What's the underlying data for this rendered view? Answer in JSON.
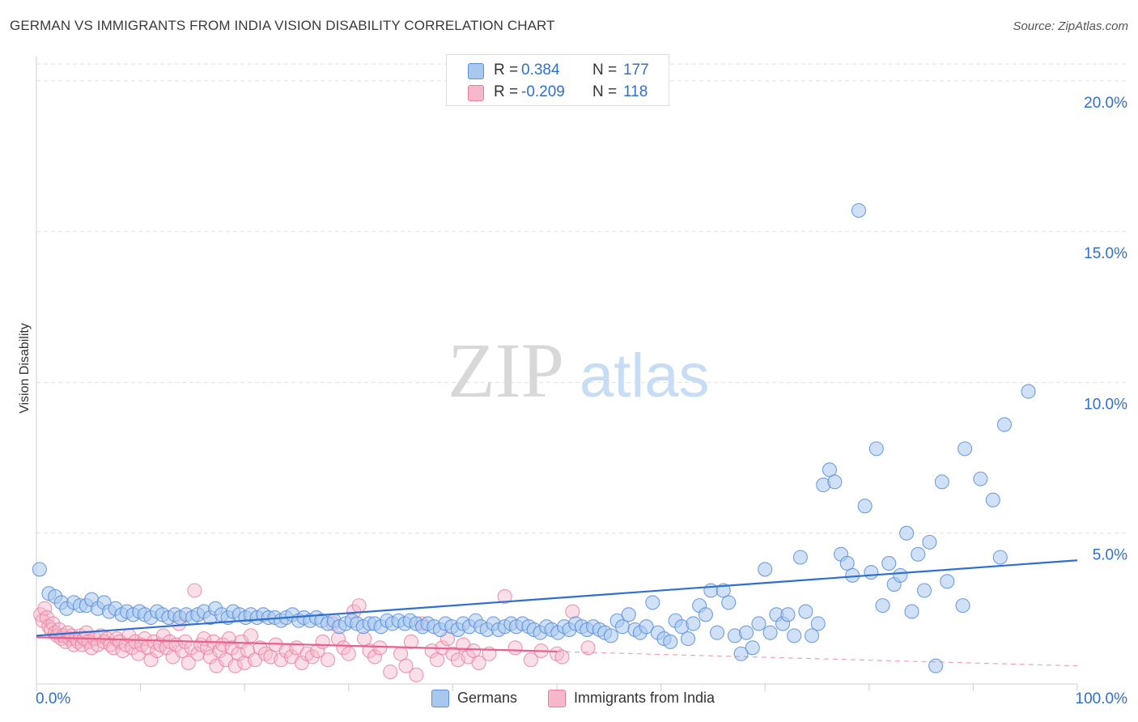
{
  "header": {
    "title": "GERMAN VS IMMIGRANTS FROM INDIA VISION DISABILITY CORRELATION CHART",
    "source": "Source: ZipAtlas.com"
  },
  "watermark": {
    "zip": "ZIP",
    "atlas": "atlas"
  },
  "legend": {
    "germans": {
      "r_label": "R =",
      "r_value": "0.384",
      "n_label": "N =",
      "n_value": "177",
      "name": "Germans"
    },
    "india": {
      "r_label": "R =",
      "r_value": "-0.209",
      "n_label": "N =",
      "n_value": "118",
      "name": "Immigrants from India"
    }
  },
  "colors": {
    "blue_fill": "#a9c8f0",
    "blue_stroke": "#5b8fd8",
    "blue_line": "#2f6fd0",
    "pink_fill": "#f7b8cc",
    "pink_stroke": "#e97fa0",
    "pink_line": "#e8608e",
    "grid": "#e0e0e0",
    "axis_text": "#2f6fd0"
  },
  "chart_data": {
    "type": "scatter",
    "title": "GERMAN VS IMMIGRANTS FROM INDIA VISION DISABILITY CORRELATION CHART",
    "xlabel": "",
    "ylabel": "Vision Disability",
    "xlim": [
      0,
      100
    ],
    "ylim": [
      0,
      20.8
    ],
    "x_tick_labels": [
      "0.0%",
      "100.0%"
    ],
    "y_ticks": [
      5,
      10,
      15,
      20
    ],
    "y_tick_labels": [
      "5.0%",
      "10.0%",
      "15.0%",
      "20.0%"
    ],
    "grid": true,
    "series": [
      {
        "name": "Germans",
        "r": 0.384,
        "n": 177,
        "trend": {
          "x": [
            0,
            100
          ],
          "y": [
            1.6,
            4.1
          ],
          "solid_to": 100
        },
        "points": [
          [
            0.3,
            3.8
          ],
          [
            1.2,
            3.0
          ],
          [
            1.8,
            2.9
          ],
          [
            2.4,
            2.7
          ],
          [
            2.9,
            2.5
          ],
          [
            3.6,
            2.7
          ],
          [
            4.2,
            2.6
          ],
          [
            4.8,
            2.6
          ],
          [
            5.3,
            2.8
          ],
          [
            5.9,
            2.5
          ],
          [
            6.5,
            2.7
          ],
          [
            7.0,
            2.4
          ],
          [
            7.6,
            2.5
          ],
          [
            8.2,
            2.3
          ],
          [
            8.7,
            2.4
          ],
          [
            9.3,
            2.3
          ],
          [
            9.9,
            2.4
          ],
          [
            10.4,
            2.3
          ],
          [
            11.0,
            2.2
          ],
          [
            11.6,
            2.4
          ],
          [
            12.1,
            2.3
          ],
          [
            12.7,
            2.2
          ],
          [
            13.3,
            2.3
          ],
          [
            13.8,
            2.2
          ],
          [
            14.4,
            2.3
          ],
          [
            15.0,
            2.2
          ],
          [
            15.5,
            2.3
          ],
          [
            16.1,
            2.4
          ],
          [
            16.7,
            2.2
          ],
          [
            17.2,
            2.5
          ],
          [
            17.8,
            2.3
          ],
          [
            18.4,
            2.2
          ],
          [
            18.9,
            2.4
          ],
          [
            19.5,
            2.3
          ],
          [
            20.1,
            2.2
          ],
          [
            20.6,
            2.3
          ],
          [
            21.2,
            2.2
          ],
          [
            21.8,
            2.3
          ],
          [
            22.3,
            2.2
          ],
          [
            22.9,
            2.2
          ],
          [
            23.5,
            2.1
          ],
          [
            24.0,
            2.2
          ],
          [
            24.6,
            2.3
          ],
          [
            25.2,
            2.1
          ],
          [
            25.7,
            2.2
          ],
          [
            26.3,
            2.1
          ],
          [
            26.9,
            2.2
          ],
          [
            27.4,
            2.1
          ],
          [
            28.0,
            2.0
          ],
          [
            28.6,
            2.1
          ],
          [
            29.1,
            1.9
          ],
          [
            29.7,
            2.0
          ],
          [
            30.3,
            2.1
          ],
          [
            30.8,
            2.0
          ],
          [
            31.4,
            1.9
          ],
          [
            32.0,
            2.0
          ],
          [
            32.5,
            2.0
          ],
          [
            33.1,
            1.9
          ],
          [
            33.7,
            2.1
          ],
          [
            34.2,
            2.0
          ],
          [
            34.8,
            2.1
          ],
          [
            35.4,
            2.0
          ],
          [
            35.9,
            2.1
          ],
          [
            36.5,
            2.0
          ],
          [
            37.1,
            1.9
          ],
          [
            37.6,
            2.0
          ],
          [
            38.2,
            1.9
          ],
          [
            38.8,
            1.8
          ],
          [
            39.3,
            2.0
          ],
          [
            39.9,
            1.9
          ],
          [
            40.5,
            1.8
          ],
          [
            41.0,
            2.0
          ],
          [
            41.6,
            1.9
          ],
          [
            42.2,
            2.1
          ],
          [
            42.7,
            1.9
          ],
          [
            43.3,
            1.8
          ],
          [
            43.9,
            2.0
          ],
          [
            44.4,
            1.8
          ],
          [
            45.0,
            1.9
          ],
          [
            45.6,
            2.0
          ],
          [
            46.1,
            1.9
          ],
          [
            46.7,
            2.0
          ],
          [
            47.3,
            1.9
          ],
          [
            47.8,
            1.8
          ],
          [
            48.4,
            1.7
          ],
          [
            49.0,
            1.9
          ],
          [
            49.5,
            1.8
          ],
          [
            50.1,
            1.7
          ],
          [
            50.7,
            1.9
          ],
          [
            51.2,
            1.8
          ],
          [
            51.8,
            2.0
          ],
          [
            52.4,
            1.9
          ],
          [
            52.9,
            1.8
          ],
          [
            53.5,
            1.9
          ],
          [
            54.1,
            1.8
          ],
          [
            54.6,
            1.7
          ],
          [
            55.2,
            1.6
          ],
          [
            55.8,
            2.1
          ],
          [
            56.3,
            1.9
          ],
          [
            56.9,
            2.3
          ],
          [
            57.5,
            1.8
          ],
          [
            58.0,
            1.7
          ],
          [
            58.6,
            1.9
          ],
          [
            59.2,
            2.7
          ],
          [
            59.7,
            1.7
          ],
          [
            60.3,
            1.5
          ],
          [
            60.9,
            1.4
          ],
          [
            61.4,
            2.1
          ],
          [
            62.0,
            1.9
          ],
          [
            62.6,
            1.5
          ],
          [
            63.1,
            2.0
          ],
          [
            63.7,
            2.6
          ],
          [
            64.3,
            2.3
          ],
          [
            64.8,
            3.1
          ],
          [
            65.4,
            1.7
          ],
          [
            66.0,
            3.1
          ],
          [
            66.5,
            2.7
          ],
          [
            67.1,
            1.6
          ],
          [
            67.7,
            1.0
          ],
          [
            68.2,
            1.7
          ],
          [
            68.8,
            1.2
          ],
          [
            69.4,
            2.0
          ],
          [
            70.0,
            3.8
          ],
          [
            70.5,
            1.7
          ],
          [
            71.1,
            2.3
          ],
          [
            71.7,
            2.0
          ],
          [
            72.2,
            2.3
          ],
          [
            72.8,
            1.6
          ],
          [
            73.4,
            4.2
          ],
          [
            73.9,
            2.4
          ],
          [
            74.5,
            1.6
          ],
          [
            75.1,
            2.0
          ],
          [
            75.6,
            6.6
          ],
          [
            76.2,
            7.1
          ],
          [
            76.7,
            6.7
          ],
          [
            77.3,
            4.3
          ],
          [
            77.9,
            4.0
          ],
          [
            78.4,
            3.6
          ],
          [
            79.0,
            15.7
          ],
          [
            79.6,
            5.9
          ],
          [
            80.2,
            3.7
          ],
          [
            80.7,
            7.8
          ],
          [
            81.3,
            2.6
          ],
          [
            81.9,
            4.0
          ],
          [
            82.4,
            3.3
          ],
          [
            83.0,
            3.6
          ],
          [
            83.6,
            5.0
          ],
          [
            84.1,
            2.4
          ],
          [
            84.7,
            4.3
          ],
          [
            85.3,
            3.1
          ],
          [
            85.8,
            4.7
          ],
          [
            86.4,
            0.6
          ],
          [
            87.0,
            6.7
          ],
          [
            87.5,
            3.4
          ],
          [
            89.0,
            2.6
          ],
          [
            89.2,
            7.8
          ],
          [
            90.7,
            6.8
          ],
          [
            91.9,
            6.1
          ],
          [
            92.6,
            4.2
          ],
          [
            93.0,
            8.6
          ],
          [
            95.3,
            9.7
          ]
        ]
      },
      {
        "name": "Immigrants from India",
        "r": -0.209,
        "n": 118,
        "trend": {
          "x": [
            0,
            100
          ],
          "y": [
            1.55,
            0.6
          ],
          "solid_to": 50
        },
        "points": [
          [
            0.4,
            2.3
          ],
          [
            0.6,
            2.1
          ],
          [
            0.8,
            2.5
          ],
          [
            1.0,
            2.2
          ],
          [
            1.2,
            1.9
          ],
          [
            1.4,
            1.8
          ],
          [
            1.6,
            2.0
          ],
          [
            1.8,
            1.7
          ],
          [
            2.0,
            1.6
          ],
          [
            2.2,
            1.8
          ],
          [
            2.4,
            1.5
          ],
          [
            2.6,
            1.6
          ],
          [
            2.8,
            1.4
          ],
          [
            3.0,
            1.7
          ],
          [
            3.2,
            1.5
          ],
          [
            3.4,
            1.6
          ],
          [
            3.6,
            1.3
          ],
          [
            3.8,
            1.5
          ],
          [
            4.0,
            1.4
          ],
          [
            4.2,
            1.6
          ],
          [
            4.4,
            1.3
          ],
          [
            4.6,
            1.5
          ],
          [
            4.8,
            1.7
          ],
          [
            5.0,
            1.4
          ],
          [
            5.3,
            1.2
          ],
          [
            5.6,
            1.5
          ],
          [
            5.9,
            1.3
          ],
          [
            6.2,
            1.6
          ],
          [
            6.5,
            1.4
          ],
          [
            6.8,
            1.5
          ],
          [
            7.1,
            1.3
          ],
          [
            7.4,
            1.2
          ],
          [
            7.7,
            1.5
          ],
          [
            8.0,
            1.4
          ],
          [
            8.3,
            1.1
          ],
          [
            8.6,
            1.3
          ],
          [
            8.9,
            1.6
          ],
          [
            9.2,
            1.2
          ],
          [
            9.5,
            1.4
          ],
          [
            9.8,
            1.0
          ],
          [
            10.1,
            1.3
          ],
          [
            10.4,
            1.5
          ],
          [
            10.7,
            1.2
          ],
          [
            11.0,
            0.8
          ],
          [
            11.3,
            1.4
          ],
          [
            11.6,
            1.1
          ],
          [
            11.9,
            1.3
          ],
          [
            12.2,
            1.6
          ],
          [
            12.5,
            1.2
          ],
          [
            12.8,
            1.4
          ],
          [
            13.1,
            0.9
          ],
          [
            13.4,
            1.3
          ],
          [
            13.7,
            2.0
          ],
          [
            14.0,
            1.1
          ],
          [
            14.3,
            1.4
          ],
          [
            14.6,
            0.7
          ],
          [
            14.9,
            1.2
          ],
          [
            15.2,
            3.1
          ],
          [
            15.5,
            1.0
          ],
          [
            15.8,
            1.3
          ],
          [
            16.1,
            1.5
          ],
          [
            16.4,
            1.2
          ],
          [
            16.7,
            0.9
          ],
          [
            17.0,
            1.4
          ],
          [
            17.3,
            0.6
          ],
          [
            17.6,
            1.1
          ],
          [
            17.9,
            1.3
          ],
          [
            18.2,
            0.8
          ],
          [
            18.5,
            1.5
          ],
          [
            18.8,
            1.2
          ],
          [
            19.1,
            0.6
          ],
          [
            19.4,
            1.0
          ],
          [
            19.7,
            1.4
          ],
          [
            20.0,
            0.7
          ],
          [
            20.3,
            1.1
          ],
          [
            20.6,
            1.6
          ],
          [
            21.0,
            0.8
          ],
          [
            21.5,
            1.2
          ],
          [
            22.0,
            1.0
          ],
          [
            22.5,
            0.9
          ],
          [
            23.0,
            1.3
          ],
          [
            23.5,
            0.8
          ],
          [
            24.0,
            1.1
          ],
          [
            24.5,
            0.9
          ],
          [
            25.0,
            1.2
          ],
          [
            25.5,
            0.7
          ],
          [
            26.0,
            1.0
          ],
          [
            26.5,
            0.9
          ],
          [
            27.0,
            1.1
          ],
          [
            27.5,
            1.4
          ],
          [
            28.0,
            0.8
          ],
          [
            28.5,
            2.0
          ],
          [
            29.0,
            1.5
          ],
          [
            29.5,
            1.2
          ],
          [
            30.0,
            1.0
          ],
          [
            30.5,
            2.4
          ],
          [
            31.0,
            2.6
          ],
          [
            31.5,
            1.5
          ],
          [
            32.0,
            1.1
          ],
          [
            32.5,
            0.9
          ],
          [
            33.0,
            1.2
          ],
          [
            34.0,
            0.4
          ],
          [
            35.0,
            1.0
          ],
          [
            35.5,
            0.6
          ],
          [
            36.0,
            1.4
          ],
          [
            36.5,
            0.3
          ],
          [
            37.0,
            2.0
          ],
          [
            38.0,
            1.1
          ],
          [
            38.5,
            0.8
          ],
          [
            39.0,
            1.2
          ],
          [
            39.5,
            1.5
          ],
          [
            40.0,
            1.0
          ],
          [
            40.5,
            0.8
          ],
          [
            41.0,
            1.3
          ],
          [
            41.5,
            0.9
          ],
          [
            42.0,
            1.1
          ],
          [
            42.5,
            0.7
          ],
          [
            43.5,
            1.0
          ],
          [
            45.0,
            2.9
          ],
          [
            46.0,
            1.2
          ],
          [
            47.5,
            0.8
          ],
          [
            48.5,
            1.1
          ],
          [
            50.0,
            1.0
          ],
          [
            50.5,
            0.9
          ],
          [
            51.5,
            2.4
          ],
          [
            53.0,
            1.2
          ]
        ]
      }
    ]
  }
}
